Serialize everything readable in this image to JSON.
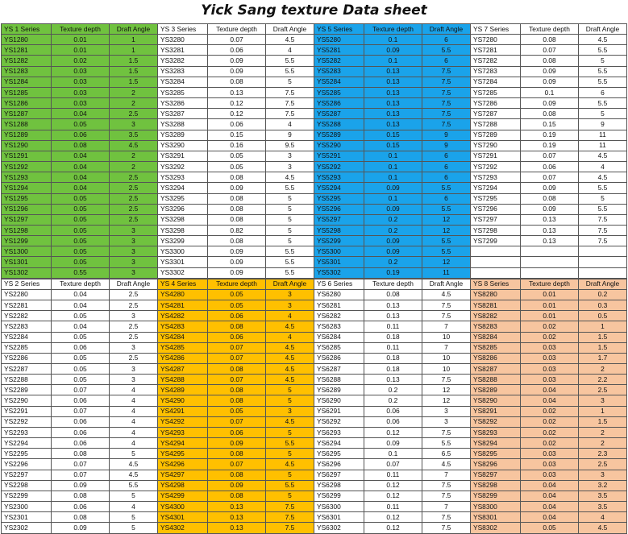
{
  "title": "Yick Sang texture Data sheet",
  "colors": {
    "green": "#70c23f",
    "blue": "#1aa3ea",
    "orange": "#ffc000",
    "peach": "#f7c59f",
    "white": "#ffffff"
  },
  "headers": {
    "depth": "Texture depth",
    "angle": "Draft Angle"
  },
  "bands": [
    [
      {
        "series": "YS 1 Series",
        "color": "#70c23f",
        "rows": [
          [
            "YS1280",
            "0.01",
            "1"
          ],
          [
            "YS1281",
            "0.01",
            "1"
          ],
          [
            "YS1282",
            "0.02",
            "1.5"
          ],
          [
            "YS1283",
            "0.03",
            "1.5"
          ],
          [
            "YS1284",
            "0.03",
            "1.5"
          ],
          [
            "YS1285",
            "0.03",
            "2"
          ],
          [
            "YS1286",
            "0.03",
            "2"
          ],
          [
            "YS1287",
            "0.04",
            "2.5"
          ],
          [
            "YS1288",
            "0.05",
            "3"
          ],
          [
            "YS1289",
            "0.06",
            "3.5"
          ],
          [
            "YS1290",
            "0.08",
            "4.5"
          ],
          [
            "YS1291",
            "0.04",
            "2"
          ],
          [
            "YS1292",
            "0.04",
            "2"
          ],
          [
            "YS1293",
            "0.04",
            "2.5"
          ],
          [
            "YS1294",
            "0.04",
            "2.5"
          ],
          [
            "YS1295",
            "0.05",
            "2.5"
          ],
          [
            "YS1296",
            "0.05",
            "2.5"
          ],
          [
            "YS1297",
            "0.05",
            "2.5"
          ],
          [
            "YS1298",
            "0.05",
            "3"
          ],
          [
            "YS1299",
            "0.05",
            "3"
          ],
          [
            "YS1300",
            "0.05",
            "3"
          ],
          [
            "YS1301",
            "0.05",
            "3"
          ],
          [
            "YS1302",
            "0.55",
            "3"
          ]
        ]
      },
      {
        "series": "YS 3 Series",
        "color": "#ffffff",
        "rows": [
          [
            "YS3280",
            "0.07",
            "4.5"
          ],
          [
            "YS3281",
            "0.06",
            "4"
          ],
          [
            "YS3282",
            "0.09",
            "5.5"
          ],
          [
            "YS3283",
            "0.09",
            "5.5"
          ],
          [
            "YS3284",
            "0.08",
            "5"
          ],
          [
            "YS3285",
            "0.13",
            "7.5"
          ],
          [
            "YS3286",
            "0.12",
            "7.5"
          ],
          [
            "YS3287",
            "0.12",
            "7.5"
          ],
          [
            "YS3288",
            "0.06",
            "4"
          ],
          [
            "YS3289",
            "0.15",
            "9"
          ],
          [
            "YS3290",
            "0.16",
            "9.5"
          ],
          [
            "YS3291",
            "0.05",
            "3"
          ],
          [
            "YS3292",
            "0.05",
            "3"
          ],
          [
            "YS3293",
            "0.08",
            "4.5"
          ],
          [
            "YS3294",
            "0.09",
            "5.5"
          ],
          [
            "YS3295",
            "0.08",
            "5"
          ],
          [
            "YS3296",
            "0.08",
            "5"
          ],
          [
            "YS3298",
            "0.08",
            "5"
          ],
          [
            "YS3298",
            "0.82",
            "5"
          ],
          [
            "YS3299",
            "0.08",
            "5"
          ],
          [
            "YS3300",
            "0.09",
            "5.5"
          ],
          [
            "YS3301",
            "0.09",
            "5.5"
          ],
          [
            "YS3302",
            "0.09",
            "5.5"
          ]
        ]
      },
      {
        "series": "YS 5 Series",
        "color": "#1aa3ea",
        "rows": [
          [
            "YS5280",
            "0.1",
            "6"
          ],
          [
            "YS5281",
            "0.09",
            "5.5"
          ],
          [
            "YS5282",
            "0.1",
            "6"
          ],
          [
            "YS5283",
            "0.13",
            "7.5"
          ],
          [
            "YS5284",
            "0.13",
            "7.5"
          ],
          [
            "YS5285",
            "0.13",
            "7.5"
          ],
          [
            "YS5286",
            "0.13",
            "7.5"
          ],
          [
            "YS5287",
            "0.13",
            "7.5"
          ],
          [
            "YS5288",
            "0.13",
            "7.5"
          ],
          [
            "YS5289",
            "0.15",
            "9"
          ],
          [
            "YS5290",
            "0.15",
            "9"
          ],
          [
            "YS5291",
            "0.1",
            "6"
          ],
          [
            "YS5292",
            "0.1",
            "6"
          ],
          [
            "YS5293",
            "0.1",
            "6"
          ],
          [
            "YS5294",
            "0.09",
            "5.5"
          ],
          [
            "YS5295",
            "0.1",
            "6"
          ],
          [
            "YS5296",
            "0.09",
            "5.5"
          ],
          [
            "YS5297",
            "0.2",
            "12"
          ],
          [
            "YS5298",
            "0.2",
            "12"
          ],
          [
            "YS5299",
            "0.09",
            "5.5"
          ],
          [
            "YS5300",
            "0.09",
            "5.5"
          ],
          [
            "YS5301",
            "0.2",
            "12"
          ],
          [
            "YS5302",
            "0.19",
            "11"
          ]
        ]
      },
      {
        "series": "YS 7 Series",
        "color": "#ffffff",
        "rows": [
          [
            "YS7280",
            "0.08",
            "4.5"
          ],
          [
            "YS7281",
            "0.07",
            "5.5"
          ],
          [
            "YS7282",
            "0.08",
            "5"
          ],
          [
            "YS7283",
            "0.09",
            "5.5"
          ],
          [
            "YS7284",
            "0.09",
            "5.5"
          ],
          [
            "YS7285",
            "0.1",
            "6"
          ],
          [
            "YS7286",
            "0.09",
            "5.5"
          ],
          [
            "YS7287",
            "0.08",
            "5"
          ],
          [
            "YS7288",
            "0.15",
            "9"
          ],
          [
            "YS7289",
            "0.19",
            "11"
          ],
          [
            "YS7290",
            "0.19",
            "11"
          ],
          [
            "YS7291",
            "0.07",
            "4.5"
          ],
          [
            "YS7292",
            "0.06",
            "4"
          ],
          [
            "YS7293",
            "0.07",
            "4.5"
          ],
          [
            "YS7294",
            "0.09",
            "5.5"
          ],
          [
            "YS7295",
            "0.08",
            "5"
          ],
          [
            "YS7296",
            "0.09",
            "5.5"
          ],
          [
            "YS7297",
            "0.13",
            "7.5"
          ],
          [
            "YS7298",
            "0.13",
            "7.5"
          ],
          [
            "YS7299",
            "0.13",
            "7.5"
          ],
          [
            "",
            "",
            ""
          ],
          [
            "",
            "",
            ""
          ],
          [
            "",
            "",
            ""
          ]
        ]
      }
    ],
    [
      {
        "series": "YS 2 Series",
        "color": "#ffffff",
        "rows": [
          [
            "YS2280",
            "0.04",
            "2.5"
          ],
          [
            "YS2281",
            "0.04",
            "2.5"
          ],
          [
            "YS2282",
            "0.05",
            "3"
          ],
          [
            "YS2283",
            "0.04",
            "2.5"
          ],
          [
            "YS2284",
            "0.05",
            "2.5"
          ],
          [
            "YS2285",
            "0.06",
            "3"
          ],
          [
            "YS2286",
            "0.05",
            "2.5"
          ],
          [
            "YS2287",
            "0.05",
            "3"
          ],
          [
            "YS2288",
            "0.05",
            "3"
          ],
          [
            "YS2289",
            "0.07",
            "4"
          ],
          [
            "YS2290",
            "0.06",
            "4"
          ],
          [
            "YS2291",
            "0.07",
            "4"
          ],
          [
            "YS2292",
            "0.06",
            "4"
          ],
          [
            "YS2293",
            "0.06",
            "4"
          ],
          [
            "YS2294",
            "0.06",
            "4"
          ],
          [
            "YS2295",
            "0.08",
            "5"
          ],
          [
            "YS2296",
            "0.07",
            "4.5"
          ],
          [
            "YS2297",
            "0.07",
            "4.5"
          ],
          [
            "YS2298",
            "0.09",
            "5.5"
          ],
          [
            "YS2299",
            "0.08",
            "5"
          ],
          [
            "YS2300",
            "0.06",
            "4"
          ],
          [
            "YS2301",
            "0.08",
            "5"
          ],
          [
            "YS2302",
            "0.09",
            "5"
          ]
        ]
      },
      {
        "series": "YS 4 Series",
        "color": "#ffc000",
        "rows": [
          [
            "YS4280",
            "0.05",
            "3"
          ],
          [
            "YS4281",
            "0.05",
            "3"
          ],
          [
            "YS4282",
            "0.06",
            "4"
          ],
          [
            "YS4283",
            "0.08",
            "4.5"
          ],
          [
            "YS4284",
            "0.06",
            "4"
          ],
          [
            "YS4285",
            "0.07",
            "4.5"
          ],
          [
            "YS4286",
            "0.07",
            "4.5"
          ],
          [
            "YS4287",
            "0.08",
            "4.5"
          ],
          [
            "YS4288",
            "0.07",
            "4.5"
          ],
          [
            "YS4289",
            "0.08",
            "5"
          ],
          [
            "YS4290",
            "0.08",
            "5"
          ],
          [
            "YS4291",
            "0.05",
            "3"
          ],
          [
            "YS4292",
            "0.07",
            "4.5"
          ],
          [
            "YS4293",
            "0.06",
            "5"
          ],
          [
            "YS4294",
            "0.09",
            "5.5"
          ],
          [
            "YS4295",
            "0.08",
            "5"
          ],
          [
            "YS4296",
            "0.07",
            "4.5"
          ],
          [
            "YS4297",
            "0.08",
            "5"
          ],
          [
            "YS4298",
            "0.09",
            "5.5"
          ],
          [
            "YS4299",
            "0.08",
            "5"
          ],
          [
            "YS4300",
            "0.13",
            "7.5"
          ],
          [
            "YS4301",
            "0.13",
            "7.5"
          ],
          [
            "YS4302",
            "0.13",
            "7.5"
          ]
        ]
      },
      {
        "series": "YS 6 Series",
        "color": "#ffffff",
        "rows": [
          [
            "YS6280",
            "0.08",
            "4.5"
          ],
          [
            "YS6281",
            "0.13",
            "7.5"
          ],
          [
            "YS6282",
            "0.13",
            "7.5"
          ],
          [
            "YS6283",
            "0.11",
            "7"
          ],
          [
            "YS6284",
            "0.18",
            "10"
          ],
          [
            "YS6285",
            "0.11",
            "7"
          ],
          [
            "YS6286",
            "0.18",
            "10"
          ],
          [
            "YS6287",
            "0.18",
            "10"
          ],
          [
            "YS6288",
            "0.13",
            "7.5"
          ],
          [
            "YS6289",
            "0.2",
            "12"
          ],
          [
            "YS6290",
            "0.2",
            "12"
          ],
          [
            "YS6291",
            "0.06",
            "3"
          ],
          [
            "YS6292",
            "0.06",
            "3"
          ],
          [
            "YS6293",
            "0.12",
            "7.5"
          ],
          [
            "YS6294",
            "0.09",
            "5.5"
          ],
          [
            "YS6295",
            "0.1",
            "6.5"
          ],
          [
            "YS6296",
            "0.07",
            "4.5"
          ],
          [
            "YS6297",
            "0.11",
            "7"
          ],
          [
            "YS6298",
            "0.12",
            "7.5"
          ],
          [
            "YS6299",
            "0.12",
            "7.5"
          ],
          [
            "YS6300",
            "0.11",
            "7"
          ],
          [
            "YS6301",
            "0.12",
            "7.5"
          ],
          [
            "YS6302",
            "0.12",
            "7.5"
          ]
        ]
      },
      {
        "series": "YS 8 Series",
        "color": "#f7c59f",
        "rows": [
          [
            "YS8280",
            "0.01",
            "0.2"
          ],
          [
            "YS8281",
            "0.01",
            "0.3"
          ],
          [
            "YS8282",
            "0.01",
            "0.5"
          ],
          [
            "YS8283",
            "0.02",
            "1"
          ],
          [
            "YS8284",
            "0.02",
            "1.5"
          ],
          [
            "YS8285",
            "0.03",
            "1.5"
          ],
          [
            "YS8286",
            "0.03",
            "1.7"
          ],
          [
            "YS8287",
            "0.03",
            "2"
          ],
          [
            "YS8288",
            "0.03",
            "2.2"
          ],
          [
            "YS8289",
            "0.04",
            "2.5"
          ],
          [
            "YS8290",
            "0.04",
            "3"
          ],
          [
            "YS8291",
            "0.02",
            "1"
          ],
          [
            "YS8292",
            "0.02",
            "1.5"
          ],
          [
            "YS8293",
            "0.02",
            "2"
          ],
          [
            "YS8294",
            "0.02",
            "2"
          ],
          [
            "YS8295",
            "0.03",
            "2.3"
          ],
          [
            "YS8296",
            "0.03",
            "2.5"
          ],
          [
            "YS8297",
            "0.03",
            "3"
          ],
          [
            "YS8298",
            "0.04",
            "3.2"
          ],
          [
            "YS8299",
            "0.04",
            "3.5"
          ],
          [
            "YS8300",
            "0.04",
            "3.5"
          ],
          [
            "YS8301",
            "0.04",
            "4"
          ],
          [
            "YS8302",
            "0.05",
            "4.5"
          ]
        ]
      }
    ]
  ]
}
